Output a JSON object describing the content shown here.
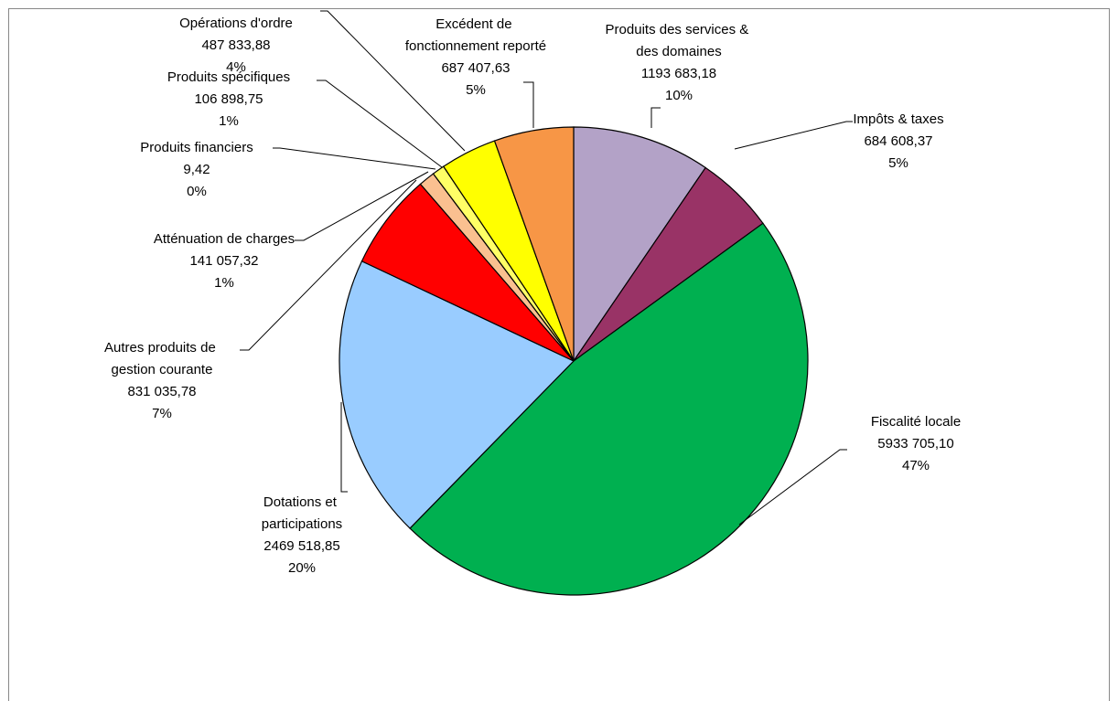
{
  "chart_data": {
    "type": "pie",
    "categories": [
      "Produits des services & des domaines",
      "Impôts & taxes",
      "Fiscalité locale",
      "Dotations et participations",
      "Autres produits de gestion courante",
      "Atténuation de charges",
      "Produits financiers",
      "Produits spécifiques",
      "Opérations d'ordre",
      "Excédent de fonctionnement reporté"
    ],
    "values": [
      1193683.18,
      684608.37,
      5933705.1,
      2469518.85,
      831035.78,
      141057.32,
      9.42,
      106898.75,
      487833.88,
      687407.63
    ],
    "value_labels": [
      "1193 683,18",
      "684 608,37",
      "5933 705,10",
      "2469 518,85",
      "831 035,78",
      "141 057,32",
      "9,42",
      "106 898,75",
      "487 833,88",
      "687 407,63"
    ],
    "percentages": [
      10,
      5,
      47,
      20,
      7,
      1,
      0,
      1,
      4,
      5
    ],
    "percent_labels": [
      "10%",
      "5%",
      "47%",
      "20%",
      "7%",
      "1%",
      "0%",
      "1%",
      "4%",
      "5%"
    ],
    "colors": [
      "#b3a2c7",
      "#993366",
      "#00b050",
      "#99ccff",
      "#ff0000",
      "#fac090",
      "#f2dcdb",
      "#ffff66",
      "#ffff00",
      "#f79646"
    ]
  }
}
